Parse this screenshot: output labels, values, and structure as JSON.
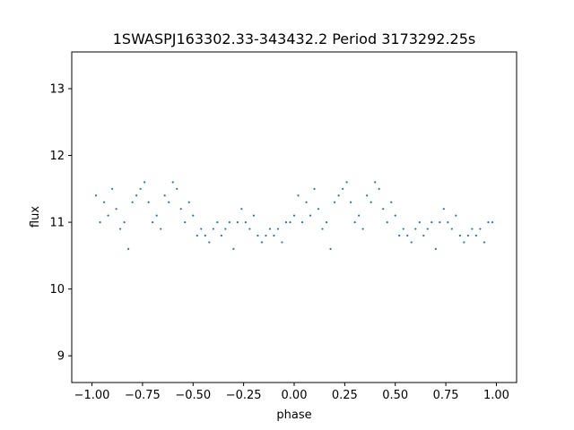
{
  "chart_data": {
    "type": "scatter",
    "title": "1SWASPJ163302.33-343432.2 Period 3173292.25s",
    "xlabel": "phase",
    "ylabel": "flux",
    "xlim": [
      -1.1,
      1.1
    ],
    "ylim": [
      8.6,
      13.55
    ],
    "xticks": [
      -1.0,
      -0.75,
      -0.5,
      -0.25,
      0.0,
      0.25,
      0.5,
      0.75,
      1.0
    ],
    "xtick_labels": [
      "−1.00",
      "−0.75",
      "−0.50",
      "−0.25",
      "0.00",
      "0.25",
      "0.50",
      "0.75",
      "1.00"
    ],
    "yticks": [
      9,
      10,
      11,
      12,
      13
    ],
    "ytick_labels": [
      "9",
      "10",
      "11",
      "12",
      "13"
    ],
    "grid": false,
    "legend": "none",
    "marker_color": "#1f77b4",
    "series": [
      {
        "points": [
          [
            -0.98,
            11.4
          ],
          [
            -0.96,
            11.0
          ],
          [
            -0.94,
            11.3
          ],
          [
            -0.92,
            11.1
          ],
          [
            -0.9,
            11.5
          ],
          [
            -0.88,
            11.2
          ],
          [
            -0.86,
            10.9
          ],
          [
            -0.84,
            11.0
          ],
          [
            -0.82,
            10.6
          ],
          [
            -0.8,
            11.3
          ],
          [
            -0.78,
            11.4
          ],
          [
            -0.76,
            11.5
          ],
          [
            -0.74,
            11.6
          ],
          [
            -0.72,
            11.3
          ],
          [
            -0.7,
            11.0
          ],
          [
            -0.68,
            11.1
          ],
          [
            -0.66,
            10.9
          ],
          [
            -0.64,
            11.4
          ],
          [
            -0.62,
            11.3
          ],
          [
            -0.6,
            11.6
          ],
          [
            -0.58,
            11.5
          ],
          [
            -0.56,
            11.2
          ],
          [
            -0.54,
            11.0
          ],
          [
            -0.52,
            11.3
          ],
          [
            -0.5,
            11.1
          ],
          [
            -0.48,
            10.8
          ],
          [
            -0.46,
            10.9
          ],
          [
            -0.44,
            10.8
          ],
          [
            -0.42,
            10.7
          ],
          [
            -0.4,
            10.9
          ],
          [
            -0.38,
            11.0
          ],
          [
            -0.36,
            10.8
          ],
          [
            -0.34,
            10.9
          ],
          [
            -0.32,
            11.0
          ],
          [
            -0.3,
            10.6
          ],
          [
            -0.28,
            11.0
          ],
          [
            -0.26,
            11.2
          ],
          [
            -0.24,
            11.0
          ],
          [
            -0.22,
            10.9
          ],
          [
            -0.2,
            11.1
          ],
          [
            -0.18,
            10.8
          ],
          [
            -0.16,
            10.7
          ],
          [
            -0.14,
            10.8
          ],
          [
            -0.12,
            10.9
          ],
          [
            -0.1,
            10.8
          ],
          [
            -0.08,
            10.9
          ],
          [
            -0.06,
            10.7
          ],
          [
            -0.04,
            11.0
          ],
          [
            -0.02,
            11.0
          ],
          [
            0.0,
            11.1
          ],
          [
            0.02,
            11.4
          ],
          [
            0.04,
            11.0
          ],
          [
            0.06,
            11.3
          ],
          [
            0.08,
            11.1
          ],
          [
            0.1,
            11.5
          ],
          [
            0.12,
            11.2
          ],
          [
            0.14,
            10.9
          ],
          [
            0.16,
            11.0
          ],
          [
            0.18,
            10.6
          ],
          [
            0.2,
            11.3
          ],
          [
            0.22,
            11.4
          ],
          [
            0.24,
            11.5
          ],
          [
            0.26,
            11.6
          ],
          [
            0.28,
            11.3
          ],
          [
            0.3,
            11.0
          ],
          [
            0.32,
            11.1
          ],
          [
            0.34,
            10.9
          ],
          [
            0.36,
            11.4
          ],
          [
            0.38,
            11.3
          ],
          [
            0.4,
            11.6
          ],
          [
            0.42,
            11.5
          ],
          [
            0.44,
            11.2
          ],
          [
            0.46,
            11.0
          ],
          [
            0.48,
            11.3
          ],
          [
            0.5,
            11.1
          ],
          [
            0.52,
            10.8
          ],
          [
            0.54,
            10.9
          ],
          [
            0.56,
            10.8
          ],
          [
            0.58,
            10.7
          ],
          [
            0.6,
            10.9
          ],
          [
            0.62,
            11.0
          ],
          [
            0.64,
            10.8
          ],
          [
            0.66,
            10.9
          ],
          [
            0.68,
            11.0
          ],
          [
            0.7,
            10.6
          ],
          [
            0.72,
            11.0
          ],
          [
            0.74,
            11.2
          ],
          [
            0.76,
            11.0
          ],
          [
            0.78,
            10.9
          ],
          [
            0.8,
            11.1
          ],
          [
            0.82,
            10.8
          ],
          [
            0.84,
            10.7
          ],
          [
            0.86,
            10.8
          ],
          [
            0.88,
            10.9
          ],
          [
            0.9,
            10.8
          ],
          [
            0.92,
            10.9
          ],
          [
            0.94,
            10.7
          ],
          [
            0.96,
            11.0
          ],
          [
            0.98,
            11.0
          ]
        ]
      }
    ]
  }
}
